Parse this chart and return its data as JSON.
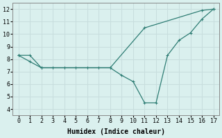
{
  "line1_x": [
    0,
    1,
    2,
    8,
    11,
    16,
    17
  ],
  "line1_y": [
    8.3,
    7.8,
    7.3,
    7.3,
    10.5,
    11.9,
    12.0
  ],
  "line2_x": [
    0,
    1,
    2,
    3,
    4,
    5,
    6,
    7,
    8,
    9,
    10,
    11,
    12,
    13,
    14,
    15,
    16,
    17
  ],
  "line2_y": [
    8.3,
    8.3,
    7.3,
    7.3,
    7.3,
    7.3,
    7.3,
    7.3,
    7.3,
    6.7,
    6.2,
    4.5,
    4.5,
    8.3,
    9.5,
    10.1,
    11.2,
    12.0
  ],
  "line_color": "#2e7d74",
  "bg_color": "#daf0ee",
  "grid_color": "#c8dede",
  "xlabel": "Humidex (Indice chaleur)",
  "xlim": [
    -0.5,
    17.5
  ],
  "ylim": [
    3.5,
    12.5
  ],
  "xticks": [
    0,
    1,
    2,
    3,
    4,
    5,
    6,
    7,
    8,
    9,
    10,
    11,
    12,
    13,
    14,
    15,
    16,
    17
  ],
  "yticks": [
    4,
    5,
    6,
    7,
    8,
    9,
    10,
    11,
    12
  ]
}
